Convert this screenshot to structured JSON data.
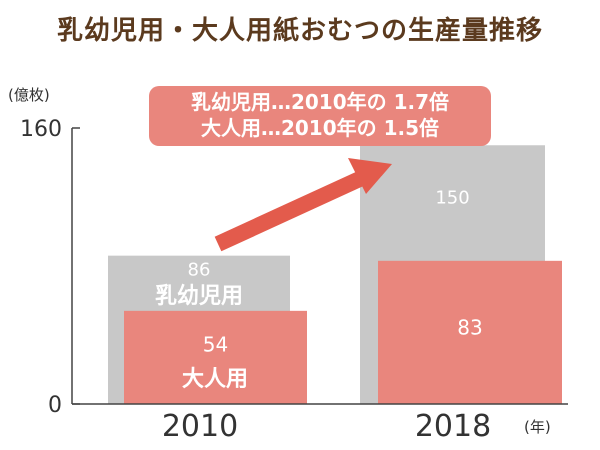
{
  "chart_data": {
    "type": "bar",
    "title": "乳幼児用・大人用紙おむつの生産量推移",
    "ylabel": "(億枚)",
    "xlabel": "(年)",
    "ylim": [
      0,
      160
    ],
    "y_ticks": [
      0,
      160
    ],
    "categories": [
      "2010",
      "2018"
    ],
    "series": [
      {
        "name": "乳幼児用",
        "values": [
          86,
          150
        ],
        "color": "#c8c8c8"
      },
      {
        "name": "大人用",
        "values": [
          54,
          83
        ],
        "color": "#e9867d"
      }
    ],
    "callout": {
      "lines": [
        "乳幼児用…2010年の 1.7倍",
        "大人用…2010年の 1.5倍"
      ],
      "color": "#e9867d"
    },
    "arrow_color": "#e35b4c",
    "grid": false
  }
}
